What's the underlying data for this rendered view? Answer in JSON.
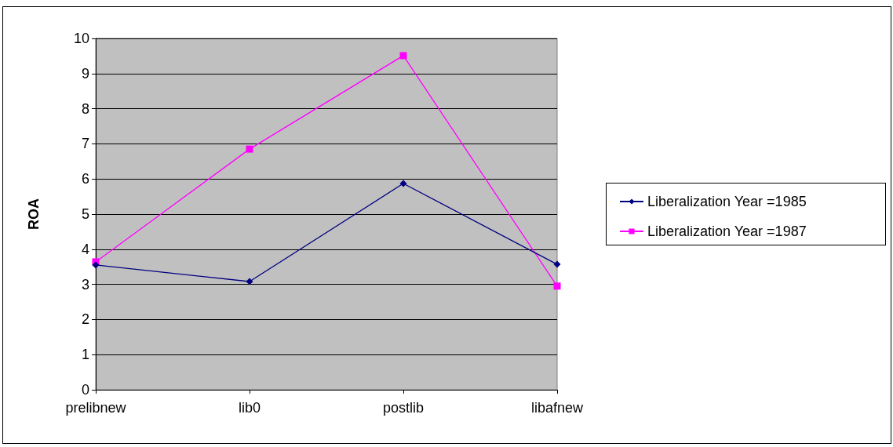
{
  "chart_data": {
    "type": "line",
    "ylabel": "ROA",
    "categories": [
      "prelibnew",
      "lib0",
      "postlib",
      "libafnew"
    ],
    "series": [
      {
        "name": "Liberalization Year =1985",
        "color": "#000080",
        "marker": "diamond",
        "values": [
          3.55,
          3.08,
          5.87,
          3.57
        ]
      },
      {
        "name": "Liberalization Year =1987",
        "color": "#ff00ff",
        "marker": "square",
        "values": [
          3.64,
          6.85,
          9.51,
          2.95
        ]
      }
    ],
    "ylim": [
      0,
      10
    ],
    "yticks": [
      0,
      1,
      2,
      3,
      4,
      5,
      6,
      7,
      8,
      9,
      10
    ],
    "grid": "y",
    "legend": "right",
    "line_style": "solid"
  }
}
